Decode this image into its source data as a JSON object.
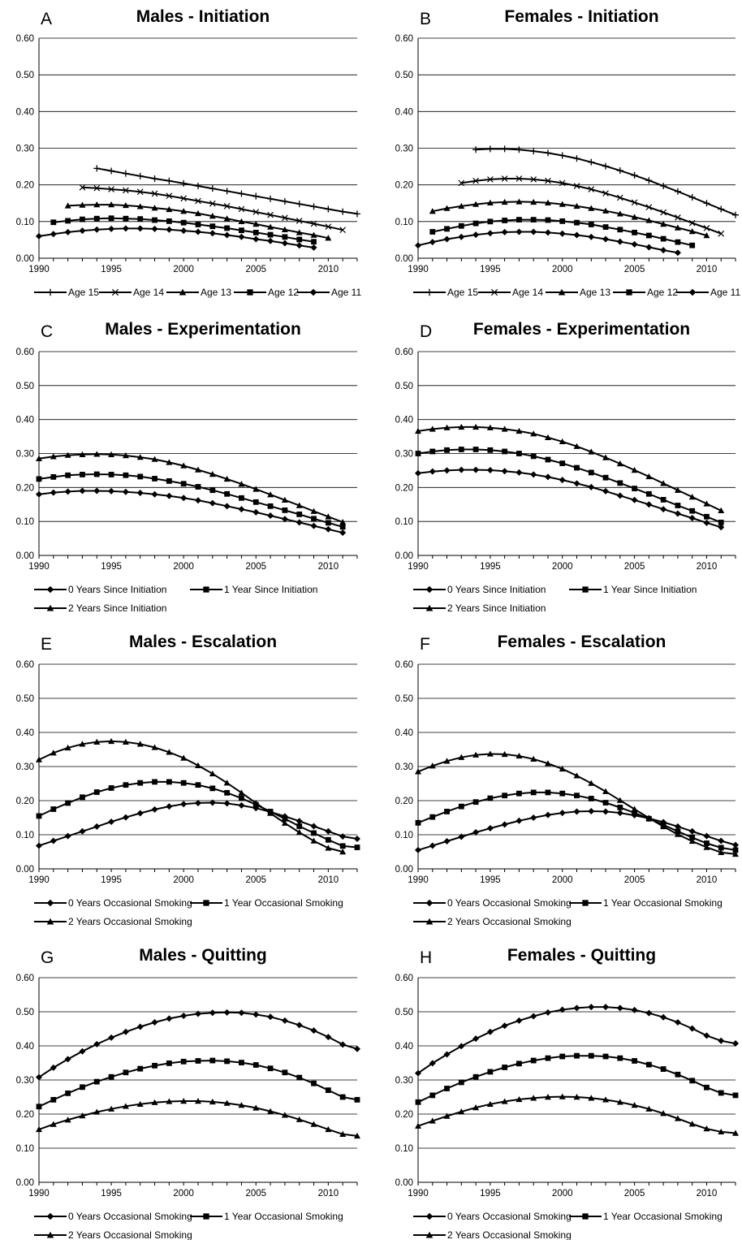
{
  "figure": {
    "background": "#ffffff",
    "line_color": "#000000",
    "grid_color": "#000000"
  },
  "chart_data": [
    {
      "panel": "A",
      "type": "line",
      "title": "Males - Initiation",
      "xlim": [
        1990,
        2012
      ],
      "ylim": [
        0,
        0.6
      ],
      "xticks": [
        "1990",
        "1995",
        "2000",
        "2005",
        "2010"
      ],
      "yticks": [
        "0.00",
        "0.10",
        "0.20",
        "0.30",
        "0.40",
        "0.50",
        "0.60"
      ],
      "grid": true,
      "legend_position": "bottom",
      "series": [
        {
          "name": "Age 15",
          "marker": "plus",
          "x_start": 1994,
          "values": [
            0.245,
            0.238,
            0.231,
            0.224,
            0.217,
            0.211,
            0.204,
            0.197,
            0.19,
            0.183,
            0.176,
            0.169,
            0.162,
            0.155,
            0.148,
            0.141,
            0.134,
            0.127,
            0.121
          ]
        },
        {
          "name": "Age 14",
          "marker": "x",
          "x_start": 1993,
          "values": [
            0.193,
            0.191,
            0.188,
            0.185,
            0.181,
            0.176,
            0.17,
            0.163,
            0.156,
            0.149,
            0.142,
            0.134,
            0.126,
            0.118,
            0.11,
            0.102,
            0.094,
            0.086,
            0.077
          ]
        },
        {
          "name": "Age 13",
          "marker": "triangle",
          "x_start": 1992,
          "values": [
            0.143,
            0.145,
            0.146,
            0.146,
            0.144,
            0.141,
            0.137,
            0.133,
            0.128,
            0.122,
            0.115,
            0.108,
            0.1,
            0.093,
            0.085,
            0.078,
            0.07,
            0.063,
            0.055
          ]
        },
        {
          "name": "Age 12",
          "marker": "square",
          "x_start": 1991,
          "values": [
            0.098,
            0.102,
            0.106,
            0.108,
            0.109,
            0.108,
            0.107,
            0.104,
            0.101,
            0.097,
            0.092,
            0.087,
            0.082,
            0.076,
            0.07,
            0.064,
            0.058,
            0.051,
            0.045
          ]
        },
        {
          "name": "Age 11",
          "marker": "diamond",
          "x_start": 1990,
          "values": [
            0.06,
            0.066,
            0.071,
            0.075,
            0.078,
            0.08,
            0.081,
            0.081,
            0.08,
            0.078,
            0.075,
            0.072,
            0.068,
            0.063,
            0.058,
            0.052,
            0.047,
            0.041,
            0.035,
            0.029
          ]
        }
      ]
    },
    {
      "panel": "B",
      "type": "line",
      "title": "Females - Initiation",
      "xlim": [
        1990,
        2012
      ],
      "ylim": [
        0,
        0.6
      ],
      "xticks": [
        "1990",
        "1995",
        "2000",
        "2005",
        "2010"
      ],
      "yticks": [
        "0.00",
        "0.10",
        "0.20",
        "0.30",
        "0.40",
        "0.50",
        "0.60"
      ],
      "grid": true,
      "legend_position": "bottom",
      "series": [
        {
          "name": "Age 15",
          "marker": "plus",
          "x_start": 1994,
          "values": [
            0.296,
            0.298,
            0.298,
            0.296,
            0.292,
            0.287,
            0.28,
            0.272,
            0.262,
            0.251,
            0.239,
            0.226,
            0.212,
            0.197,
            0.182,
            0.166,
            0.15,
            0.134,
            0.118
          ]
        },
        {
          "name": "Age 14",
          "marker": "x",
          "x_start": 1993,
          "values": [
            0.205,
            0.211,
            0.215,
            0.217,
            0.217,
            0.215,
            0.211,
            0.205,
            0.197,
            0.188,
            0.177,
            0.165,
            0.152,
            0.139,
            0.125,
            0.111,
            0.096,
            0.082,
            0.067
          ]
        },
        {
          "name": "Age 13",
          "marker": "triangle",
          "x_start": 1991,
          "values": [
            0.128,
            0.136,
            0.142,
            0.147,
            0.151,
            0.153,
            0.154,
            0.153,
            0.151,
            0.147,
            0.142,
            0.136,
            0.129,
            0.121,
            0.112,
            0.103,
            0.093,
            0.083,
            0.073,
            0.062
          ]
        },
        {
          "name": "Age 12",
          "marker": "square",
          "x_start": 1991,
          "values": [
            0.072,
            0.08,
            0.088,
            0.095,
            0.1,
            0.103,
            0.105,
            0.105,
            0.104,
            0.101,
            0.097,
            0.092,
            0.085,
            0.078,
            0.07,
            0.062,
            0.053,
            0.044,
            0.035
          ]
        },
        {
          "name": "Age 11",
          "marker": "diamond",
          "x_start": 1990,
          "values": [
            0.035,
            0.044,
            0.052,
            0.058,
            0.064,
            0.068,
            0.071,
            0.072,
            0.072,
            0.07,
            0.067,
            0.063,
            0.058,
            0.052,
            0.045,
            0.038,
            0.03,
            0.022,
            0.015
          ]
        }
      ]
    },
    {
      "panel": "C",
      "type": "line",
      "title": "Males - Experimentation",
      "xlim": [
        1990,
        2012
      ],
      "ylim": [
        0,
        0.6
      ],
      "xticks": [
        "1990",
        "1995",
        "2000",
        "2005",
        "2010"
      ],
      "yticks": [
        "0.00",
        "0.10",
        "0.20",
        "0.30",
        "0.40",
        "0.50",
        "0.60"
      ],
      "grid": true,
      "legend_position": "bottom",
      "series": [
        {
          "name": "0 Years Since Initiation",
          "marker": "diamond",
          "x_start": 1990,
          "values": [
            0.18,
            0.185,
            0.188,
            0.19,
            0.19,
            0.189,
            0.187,
            0.184,
            0.18,
            0.175,
            0.169,
            0.162,
            0.154,
            0.145,
            0.136,
            0.127,
            0.117,
            0.107,
            0.097,
            0.087,
            0.077,
            0.067
          ]
        },
        {
          "name": "1 Year Since Initiation",
          "marker": "square",
          "x_start": 1990,
          "values": [
            0.225,
            0.231,
            0.236,
            0.238,
            0.239,
            0.238,
            0.236,
            0.232,
            0.226,
            0.219,
            0.211,
            0.202,
            0.192,
            0.181,
            0.169,
            0.157,
            0.145,
            0.133,
            0.121,
            0.108,
            0.096,
            0.084
          ]
        },
        {
          "name": "2 Years Since Initiation",
          "marker": "triangle",
          "x_start": 1990,
          "values": [
            0.285,
            0.291,
            0.295,
            0.297,
            0.298,
            0.297,
            0.294,
            0.289,
            0.283,
            0.274,
            0.264,
            0.252,
            0.239,
            0.225,
            0.21,
            0.195,
            0.179,
            0.163,
            0.147,
            0.13,
            0.114,
            0.098
          ]
        }
      ]
    },
    {
      "panel": "D",
      "type": "line",
      "title": "Females - Experimentation",
      "xlim": [
        1990,
        2012
      ],
      "ylim": [
        0,
        0.6
      ],
      "xticks": [
        "1990",
        "1995",
        "2000",
        "2005",
        "2010"
      ],
      "yticks": [
        "0.00",
        "0.10",
        "0.20",
        "0.30",
        "0.40",
        "0.50",
        "0.60"
      ],
      "grid": true,
      "legend_position": "bottom",
      "series": [
        {
          "name": "0 Years Since Initiation",
          "marker": "diamond",
          "x_start": 1990,
          "values": [
            0.242,
            0.247,
            0.25,
            0.252,
            0.252,
            0.251,
            0.248,
            0.244,
            0.238,
            0.231,
            0.222,
            0.212,
            0.201,
            0.189,
            0.176,
            0.163,
            0.15,
            0.136,
            0.123,
            0.11,
            0.096,
            0.083
          ]
        },
        {
          "name": "1 Year Since Initiation",
          "marker": "square",
          "x_start": 1990,
          "values": [
            0.3,
            0.306,
            0.31,
            0.312,
            0.312,
            0.31,
            0.306,
            0.3,
            0.292,
            0.282,
            0.271,
            0.258,
            0.244,
            0.229,
            0.213,
            0.197,
            0.181,
            0.164,
            0.147,
            0.131,
            0.114,
            0.097
          ]
        },
        {
          "name": "2 Years Since Initiation",
          "marker": "triangle",
          "x_start": 1990,
          "values": [
            0.366,
            0.372,
            0.376,
            0.378,
            0.378,
            0.376,
            0.372,
            0.366,
            0.358,
            0.347,
            0.335,
            0.321,
            0.305,
            0.288,
            0.27,
            0.251,
            0.232,
            0.212,
            0.192,
            0.172,
            0.152,
            0.132
          ]
        }
      ]
    },
    {
      "panel": "E",
      "type": "line",
      "title": "Males - Escalation",
      "xlim": [
        1990,
        2012
      ],
      "ylim": [
        0,
        0.6
      ],
      "xticks": [
        "1990",
        "1995",
        "2000",
        "2005",
        "2010"
      ],
      "yticks": [
        "0.00",
        "0.10",
        "0.20",
        "0.30",
        "0.40",
        "0.50",
        "0.60"
      ],
      "grid": true,
      "legend_position": "bottom",
      "series": [
        {
          "name": "0 Years Occasional Smoking",
          "marker": "diamond",
          "x_start": 1990,
          "values": [
            0.068,
            0.082,
            0.096,
            0.11,
            0.124,
            0.138,
            0.151,
            0.163,
            0.174,
            0.183,
            0.19,
            0.193,
            0.194,
            0.192,
            0.186,
            0.178,
            0.167,
            0.154,
            0.14,
            0.125,
            0.11,
            0.095,
            0.088
          ]
        },
        {
          "name": "1 Year Occasional Smoking",
          "marker": "square",
          "x_start": 1990,
          "values": [
            0.155,
            0.175,
            0.193,
            0.21,
            0.225,
            0.237,
            0.246,
            0.252,
            0.255,
            0.255,
            0.252,
            0.246,
            0.236,
            0.223,
            0.207,
            0.188,
            0.168,
            0.147,
            0.125,
            0.105,
            0.085,
            0.067,
            0.063
          ]
        },
        {
          "name": "2 Years Occasional Smoking",
          "marker": "triangle",
          "x_start": 1990,
          "values": [
            0.32,
            0.34,
            0.355,
            0.366,
            0.372,
            0.374,
            0.372,
            0.366,
            0.356,
            0.342,
            0.325,
            0.303,
            0.279,
            0.252,
            0.223,
            0.193,
            0.163,
            0.134,
            0.107,
            0.082,
            0.061,
            0.05
          ]
        }
      ]
    },
    {
      "panel": "F",
      "type": "line",
      "title": "Females - Escalation",
      "xlim": [
        1990,
        2012
      ],
      "ylim": [
        0,
        0.6
      ],
      "xticks": [
        "1990",
        "1995",
        "2000",
        "2005",
        "2010"
      ],
      "yticks": [
        "0.00",
        "0.10",
        "0.20",
        "0.30",
        "0.40",
        "0.50",
        "0.60"
      ],
      "grid": true,
      "legend_position": "bottom",
      "series": [
        {
          "name": "0 Years Occasional Smoking",
          "marker": "diamond",
          "x_start": 1990,
          "values": [
            0.055,
            0.068,
            0.081,
            0.094,
            0.107,
            0.119,
            0.13,
            0.141,
            0.15,
            0.158,
            0.164,
            0.168,
            0.169,
            0.168,
            0.164,
            0.157,
            0.148,
            0.137,
            0.124,
            0.11,
            0.096,
            0.082,
            0.07
          ]
        },
        {
          "name": "1 Year Occasional Smoking",
          "marker": "square",
          "x_start": 1990,
          "values": [
            0.135,
            0.152,
            0.168,
            0.183,
            0.196,
            0.207,
            0.215,
            0.221,
            0.224,
            0.224,
            0.221,
            0.215,
            0.206,
            0.194,
            0.18,
            0.164,
            0.147,
            0.129,
            0.11,
            0.092,
            0.075,
            0.062,
            0.055
          ]
        },
        {
          "name": "2 Years Occasional Smoking",
          "marker": "triangle",
          "x_start": 1990,
          "values": [
            0.285,
            0.302,
            0.316,
            0.327,
            0.334,
            0.337,
            0.336,
            0.331,
            0.322,
            0.309,
            0.293,
            0.273,
            0.251,
            0.227,
            0.201,
            0.175,
            0.149,
            0.124,
            0.101,
            0.081,
            0.063,
            0.048,
            0.043
          ]
        }
      ]
    },
    {
      "panel": "G",
      "type": "line",
      "title": "Males - Quitting",
      "xlim": [
        1990,
        2012
      ],
      "ylim": [
        0,
        0.6
      ],
      "xticks": [
        "1990",
        "1995",
        "2000",
        "2005",
        "2010"
      ],
      "yticks": [
        "0.00",
        "0.10",
        "0.20",
        "0.30",
        "0.40",
        "0.50",
        "0.60"
      ],
      "grid": true,
      "legend_position": "bottom",
      "series": [
        {
          "name": "0 Years Occasional Smoking",
          "marker": "diamond",
          "x_start": 1990,
          "values": [
            0.308,
            0.336,
            0.361,
            0.384,
            0.405,
            0.424,
            0.441,
            0.456,
            0.469,
            0.48,
            0.488,
            0.494,
            0.497,
            0.498,
            0.497,
            0.492,
            0.485,
            0.474,
            0.461,
            0.445,
            0.426,
            0.404,
            0.391
          ]
        },
        {
          "name": "1 Year Occasional Smoking",
          "marker": "square",
          "x_start": 1990,
          "values": [
            0.222,
            0.242,
            0.261,
            0.279,
            0.295,
            0.309,
            0.322,
            0.333,
            0.342,
            0.349,
            0.354,
            0.356,
            0.357,
            0.355,
            0.351,
            0.344,
            0.334,
            0.322,
            0.307,
            0.29,
            0.27,
            0.25,
            0.242
          ]
        },
        {
          "name": "2 Years Occasional Smoking",
          "marker": "triangle",
          "x_start": 1990,
          "values": [
            0.155,
            0.17,
            0.183,
            0.195,
            0.206,
            0.215,
            0.223,
            0.229,
            0.234,
            0.237,
            0.238,
            0.238,
            0.236,
            0.232,
            0.226,
            0.218,
            0.208,
            0.197,
            0.184,
            0.17,
            0.155,
            0.141,
            0.136
          ]
        }
      ]
    },
    {
      "panel": "H",
      "type": "line",
      "title": "Females - Quitting",
      "xlim": [
        1990,
        2012
      ],
      "ylim": [
        0,
        0.6
      ],
      "xticks": [
        "1990",
        "1995",
        "2000",
        "2005",
        "2010"
      ],
      "yticks": [
        "0.00",
        "0.10",
        "0.20",
        "0.30",
        "0.40",
        "0.50",
        "0.60"
      ],
      "grid": true,
      "legend_position": "bottom",
      "series": [
        {
          "name": "0 Years Occasional Smoking",
          "marker": "diamond",
          "x_start": 1990,
          "values": [
            0.32,
            0.349,
            0.375,
            0.399,
            0.421,
            0.441,
            0.459,
            0.474,
            0.487,
            0.498,
            0.506,
            0.511,
            0.514,
            0.514,
            0.511,
            0.505,
            0.496,
            0.484,
            0.469,
            0.451,
            0.43,
            0.415,
            0.407
          ]
        },
        {
          "name": "1 Year Occasional Smoking",
          "marker": "square",
          "x_start": 1990,
          "values": [
            0.235,
            0.255,
            0.275,
            0.293,
            0.309,
            0.324,
            0.337,
            0.348,
            0.357,
            0.364,
            0.369,
            0.371,
            0.371,
            0.369,
            0.364,
            0.356,
            0.345,
            0.332,
            0.316,
            0.298,
            0.278,
            0.262,
            0.255
          ]
        },
        {
          "name": "2 Years Occasional Smoking",
          "marker": "triangle",
          "x_start": 1990,
          "values": [
            0.165,
            0.18,
            0.194,
            0.207,
            0.219,
            0.229,
            0.237,
            0.243,
            0.247,
            0.25,
            0.251,
            0.25,
            0.247,
            0.242,
            0.235,
            0.226,
            0.215,
            0.202,
            0.187,
            0.171,
            0.157,
            0.148,
            0.144
          ]
        }
      ]
    }
  ]
}
